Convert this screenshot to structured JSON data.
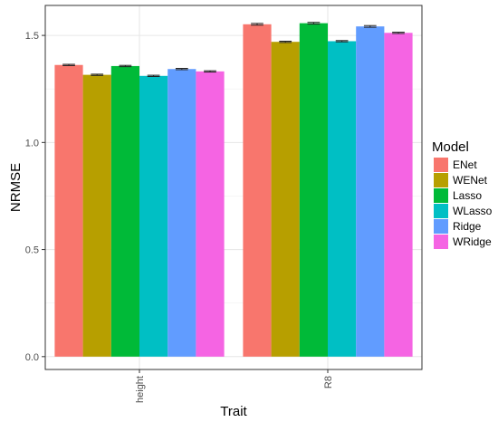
{
  "chart_data": {
    "type": "bar",
    "xlabel": "Trait",
    "ylabel": "NRMSE",
    "categories": [
      "height",
      "R8"
    ],
    "ylim": [
      -0.06,
      1.64
    ],
    "yticks": [
      0.0,
      0.5,
      1.0,
      1.5
    ],
    "ytick_labels": [
      "0.0",
      "0.5",
      "1.0",
      "1.5"
    ],
    "grid": true,
    "legend": {
      "title": "Model",
      "position": "right"
    },
    "error_bars": true,
    "series": [
      {
        "name": "ENet",
        "color": "#F8766D",
        "values": [
          1.362,
          1.552
        ],
        "errors": [
          0.003,
          0.004
        ]
      },
      {
        "name": "WENet",
        "color": "#B79F00",
        "values": [
          1.316,
          1.47
        ],
        "errors": [
          0.003,
          0.003
        ]
      },
      {
        "name": "Lasso",
        "color": "#00BA38",
        "values": [
          1.357,
          1.557
        ],
        "errors": [
          0.003,
          0.004
        ]
      },
      {
        "name": "WLasso",
        "color": "#00BFC4",
        "values": [
          1.311,
          1.473
        ],
        "errors": [
          0.003,
          0.003
        ]
      },
      {
        "name": "Ridge",
        "color": "#619CFF",
        "values": [
          1.343,
          1.542
        ],
        "errors": [
          0.003,
          0.004
        ]
      },
      {
        "name": "WRidge",
        "color": "#F564E3",
        "values": [
          1.332,
          1.512
        ],
        "errors": [
          0.003,
          0.003
        ]
      }
    ]
  }
}
